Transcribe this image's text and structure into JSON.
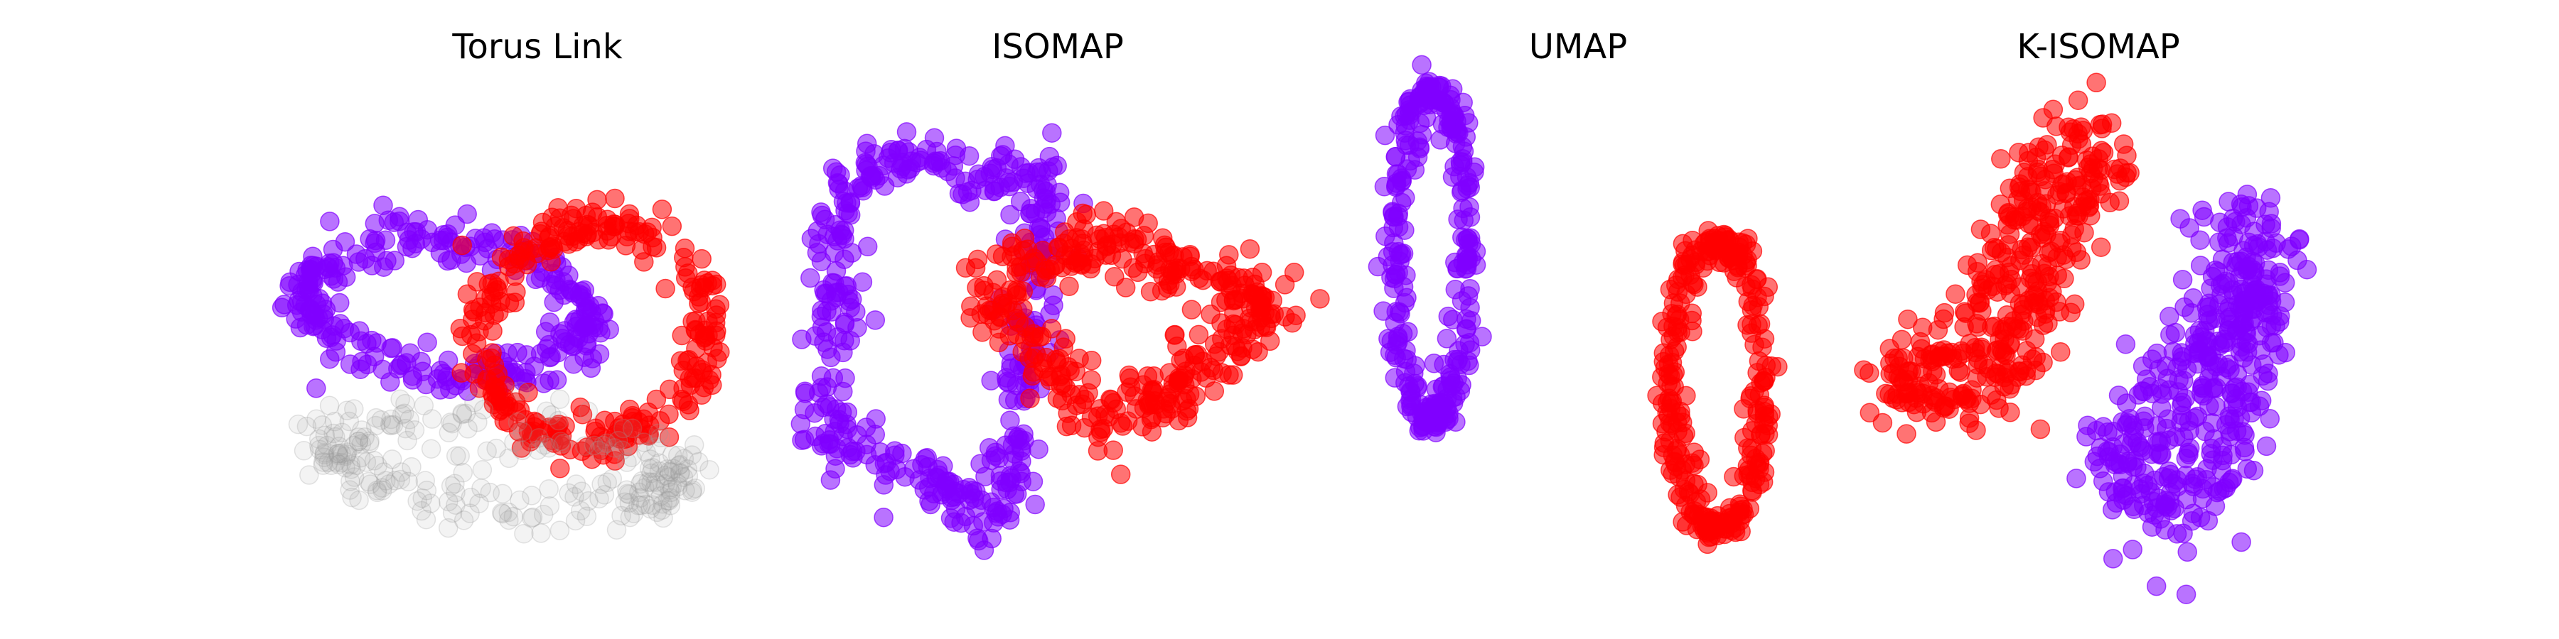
{
  "colors": {
    "purple": "#8000ff",
    "red": "#ff0000",
    "shadow": "#9a9a9a"
  },
  "chart_data": [
    {
      "type": "scatter",
      "title": "Torus Link",
      "grid": false,
      "axes": "off",
      "xlim": [
        -1.6,
        1.6
      ],
      "ylim": [
        -1.2,
        1.2
      ],
      "series": [
        {
          "color": "#8000ff",
          "shape": "ring",
          "cx": -0.55,
          "cy": 0.15,
          "rx": 0.85,
          "ry": 0.38,
          "rot": -5,
          "count": 280,
          "jitter": 0.07
        },
        {
          "color": "#ff0000",
          "shape": "ring",
          "cx": 0.35,
          "cy": 0.0,
          "rx": 0.7,
          "ry": 0.62,
          "rot": 20,
          "count": 280,
          "jitter": 0.07
        },
        {
          "color": "#9a9a9a",
          "shape": "ring",
          "cx": -0.2,
          "cy": -0.75,
          "rx": 1.1,
          "ry": 0.22,
          "rot": -5,
          "count": 260,
          "jitter": 0.09,
          "alpha": 0.12
        }
      ]
    },
    {
      "type": "scatter",
      "title": "ISOMAP",
      "grid": false,
      "axes": "off",
      "xlim": [
        -1.6,
        1.6
      ],
      "ylim": [
        -1.2,
        1.2
      ],
      "series": [
        {
          "color": "#8000ff",
          "shape": "triangle",
          "points": [
            [
              -1.3,
              0.95
            ],
            [
              -0.05,
              0.95
            ],
            [
              -0.35,
              -1.05
            ],
            [
              -1.4,
              -0.6
            ]
          ],
          "count": 420,
          "jitter": 0.09
        },
        {
          "color": "#ff0000",
          "shape": "triangle",
          "points": [
            [
              -0.45,
              0.25
            ],
            [
              0.25,
              0.55
            ],
            [
              1.35,
              0.15
            ],
            [
              0.35,
              -0.55
            ]
          ],
          "count": 380,
          "jitter": 0.09
        }
      ]
    },
    {
      "type": "scatter",
      "title": "UMAP",
      "grid": false,
      "axes": "off",
      "xlim": [
        -1.6,
        1.6
      ],
      "ylim": [
        -1.2,
        1.2
      ],
      "series": [
        {
          "color": "#8000ff",
          "shape": "ring",
          "cx": -0.9,
          "cy": 0.45,
          "rx": 0.22,
          "ry": 0.95,
          "rot": 0,
          "count": 300,
          "jitter": 0.045
        },
        {
          "color": "#ff0000",
          "shape": "ring",
          "cx": 0.85,
          "cy": -0.3,
          "rx": 0.28,
          "ry": 0.82,
          "rot": 0,
          "count": 300,
          "jitter": 0.045
        }
      ]
    },
    {
      "type": "scatter",
      "title": "K-ISOMAP",
      "grid": false,
      "axes": "off",
      "xlim": [
        -1.6,
        1.6
      ],
      "ylim": [
        -1.2,
        1.2
      ],
      "series": [
        {
          "color": "#ff0000",
          "shape": "blob",
          "path": [
            [
              -1.3,
              -0.3
            ],
            [
              -0.6,
              -0.35
            ],
            [
              -0.3,
              0.45
            ],
            [
              0.0,
              0.95
            ],
            [
              -0.1,
              1.15
            ],
            [
              -0.4,
              0.7
            ],
            [
              -0.7,
              0.1
            ],
            [
              -1.3,
              -0.3
            ]
          ],
          "count": 380,
          "jitter": 0.12
        },
        {
          "color": "#8000ff",
          "shape": "blob",
          "path": [
            [
              0.75,
              0.55
            ],
            [
              0.9,
              0.2
            ],
            [
              0.55,
              -0.2
            ],
            [
              0.1,
              -0.75
            ],
            [
              0.4,
              -1.0
            ],
            [
              0.75,
              -0.7
            ],
            [
              0.9,
              -0.1
            ],
            [
              1.0,
              0.55
            ],
            [
              0.75,
              0.55
            ]
          ],
          "count": 420,
          "jitter": 0.14
        }
      ]
    }
  ]
}
